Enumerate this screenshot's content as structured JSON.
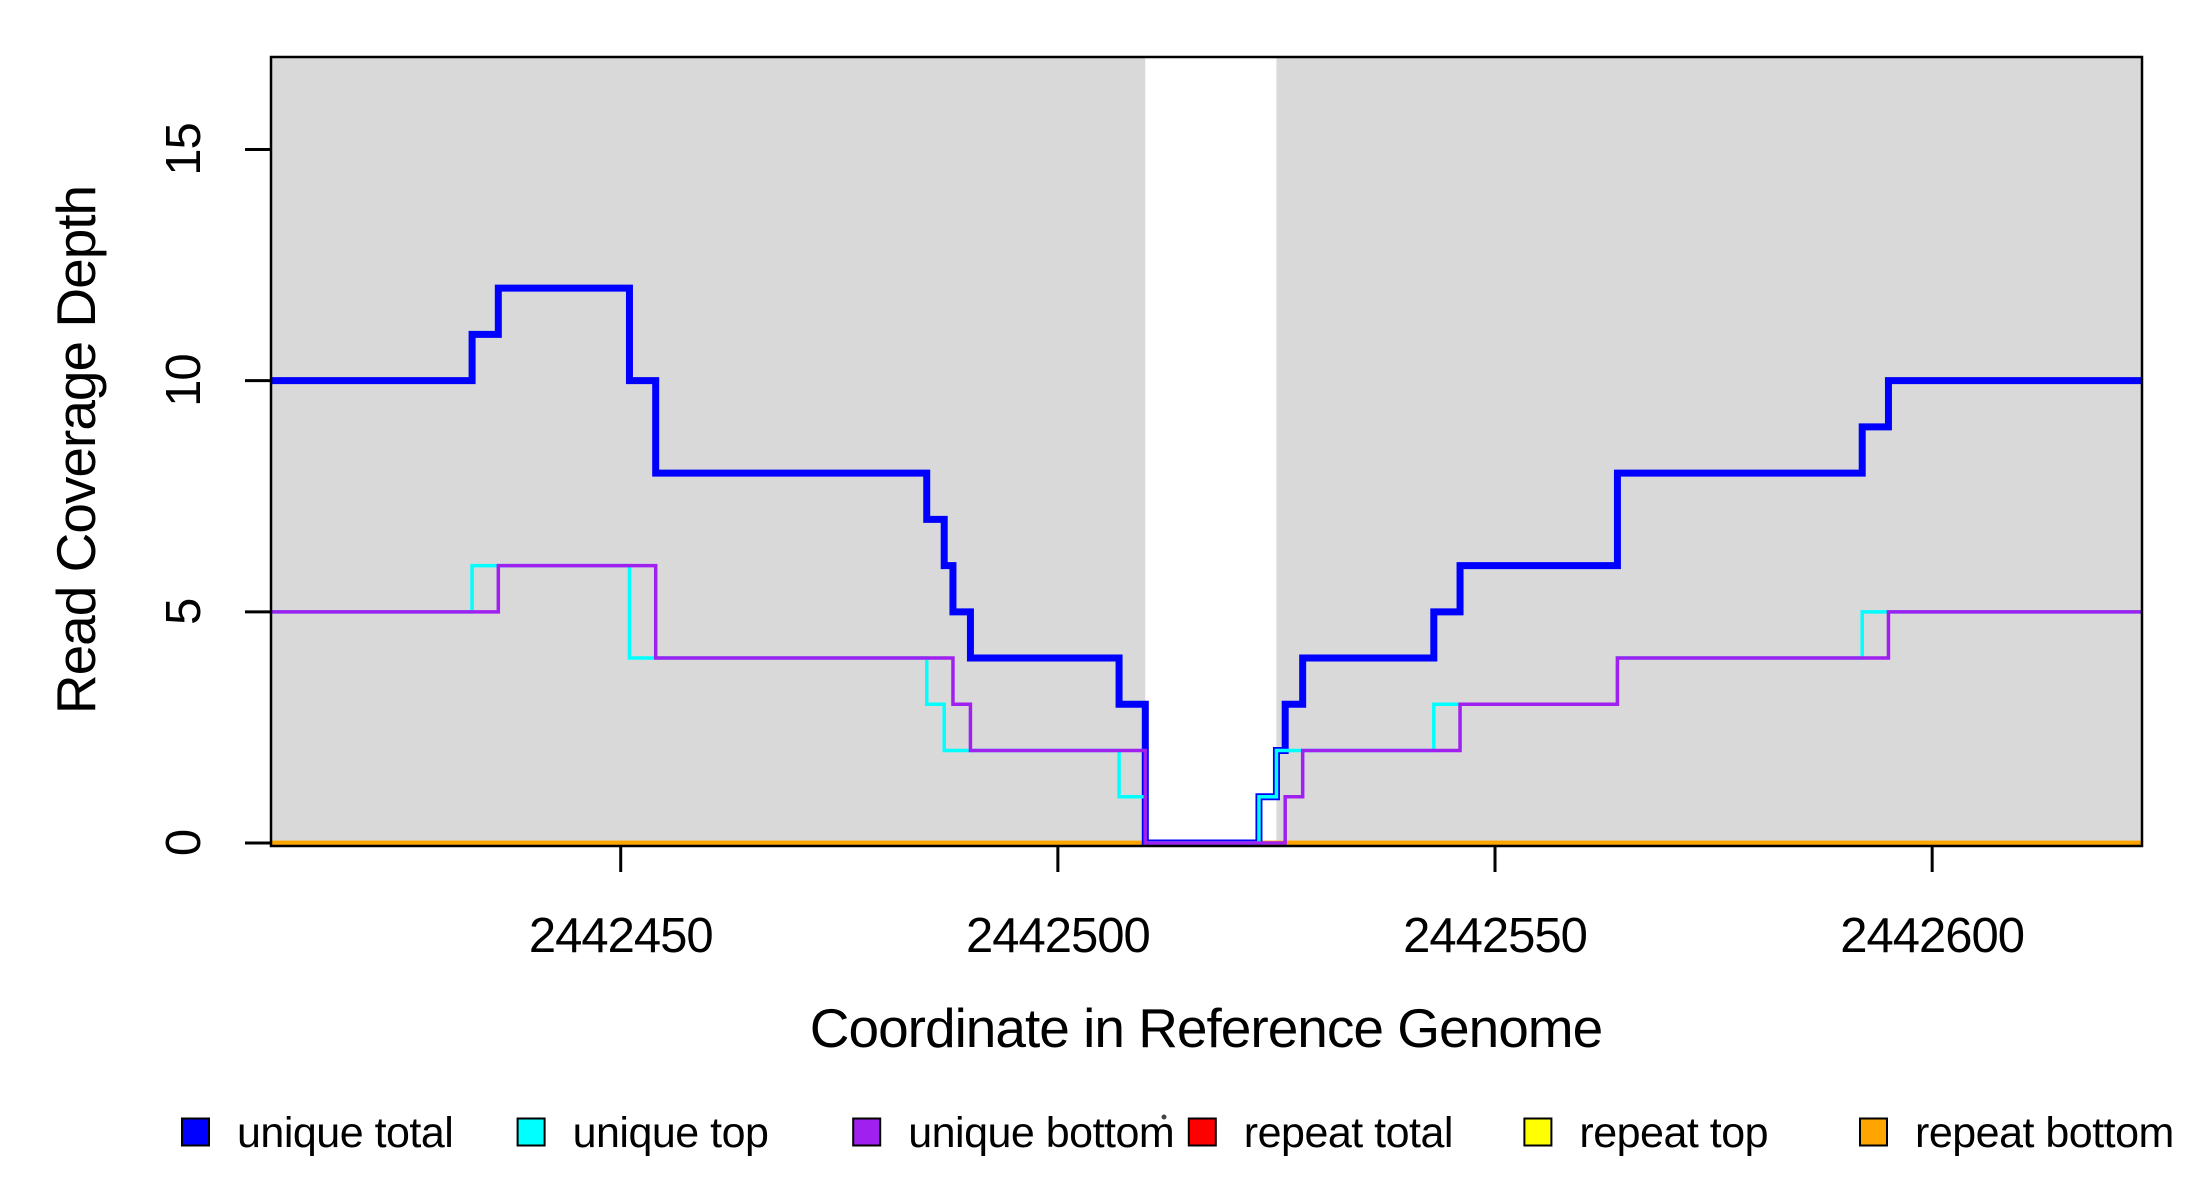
{
  "chart_data": {
    "type": "line",
    "subtype": "step-after",
    "title": "",
    "xlabel": "Coordinate in Reference Genome",
    "ylabel": "Read Coverage Depth",
    "xlim": [
      2442410,
      2442624
    ],
    "ylim": [
      0,
      17
    ],
    "grid": false,
    "panel_color": "#d9d9d9",
    "gap_band": {
      "from": 2442510,
      "to": 2442525,
      "color": "#ffffff"
    },
    "shaded_regions": [
      {
        "from": 2442410,
        "to": 2442510
      },
      {
        "from": 2442525,
        "to": 2442624
      }
    ],
    "x_axis": {
      "tick_values": [
        2442450,
        2442500,
        2442550,
        2442600
      ],
      "tick_labels": [
        "2442450",
        "2442500",
        "2442550",
        "2442600"
      ]
    },
    "y_axis": {
      "tick_values": [
        0,
        5,
        10,
        15
      ],
      "tick_labels": [
        "0",
        "5",
        "10",
        "15"
      ]
    },
    "series": [
      {
        "name": "repeat_total",
        "label": "repeat total",
        "color": "#ff0000",
        "line_width": 4.5,
        "points": [
          [
            2442410,
            0
          ],
          [
            2442624,
            0
          ]
        ]
      },
      {
        "name": "repeat_top",
        "label": "repeat top",
        "color": "#ffff00",
        "line_width": 4.5,
        "points": [
          [
            2442410,
            0
          ],
          [
            2442624,
            0
          ]
        ]
      },
      {
        "name": "repeat_bottom",
        "label": "repeat bottom",
        "color": "#ffa500",
        "line_width": 4.5,
        "points": [
          [
            2442410,
            0
          ],
          [
            2442624,
            0
          ]
        ]
      },
      {
        "name": "unique_total",
        "label": "unique total",
        "color": "#0000ff",
        "line_width": 7,
        "points": [
          [
            2442410,
            10
          ],
          [
            2442433,
            11
          ],
          [
            2442436,
            12
          ],
          [
            2442451,
            10
          ],
          [
            2442454,
            8
          ],
          [
            2442485,
            7
          ],
          [
            2442487,
            6
          ],
          [
            2442488,
            5
          ],
          [
            2442490,
            4
          ],
          [
            2442507,
            3
          ],
          [
            2442510,
            0
          ],
          [
            2442523,
            1
          ],
          [
            2442525,
            2
          ],
          [
            2442526,
            3
          ],
          [
            2442528,
            4
          ],
          [
            2442543,
            5
          ],
          [
            2442546,
            6
          ],
          [
            2442564,
            8
          ],
          [
            2442592,
            9
          ],
          [
            2442595,
            10
          ],
          [
            2442624,
            10
          ]
        ]
      },
      {
        "name": "unique_top",
        "label": "unique top",
        "color": "#00ffff",
        "line_width": 3.5,
        "points": [
          [
            2442410,
            5
          ],
          [
            2442433,
            6
          ],
          [
            2442451,
            4
          ],
          [
            2442485,
            3
          ],
          [
            2442487,
            2
          ],
          [
            2442507,
            1
          ],
          [
            2442510,
            0
          ],
          [
            2442523,
            1
          ],
          [
            2442525,
            2
          ],
          [
            2442543,
            3
          ],
          [
            2442564,
            4
          ],
          [
            2442592,
            5
          ],
          [
            2442624,
            5
          ]
        ]
      },
      {
        "name": "unique_bottom",
        "label": "unique bottom",
        "color": "#a020f0",
        "line_width": 3.5,
        "points": [
          [
            2442410,
            5
          ],
          [
            2442436,
            6
          ],
          [
            2442454,
            4
          ],
          [
            2442488,
            3
          ],
          [
            2442490,
            2
          ],
          [
            2442510,
            0
          ],
          [
            2442526,
            1
          ],
          [
            2442528,
            2
          ],
          [
            2442546,
            3
          ],
          [
            2442564,
            4
          ],
          [
            2442595,
            5
          ],
          [
            2442624,
            5
          ]
        ]
      }
    ],
    "legend": {
      "position": "bottom",
      "entries": [
        {
          "label": "unique total",
          "color": "#0000ff"
        },
        {
          "label": "unique top",
          "color": "#00ffff"
        },
        {
          "label": "unique bottom",
          "color": "#a020f0"
        },
        {
          "label": "repeat total",
          "color": "#ff0000"
        },
        {
          "label": "repeat top",
          "color": "#ffff00"
        },
        {
          "label": "repeat bottom",
          "color": "#ffa500"
        }
      ]
    }
  }
}
